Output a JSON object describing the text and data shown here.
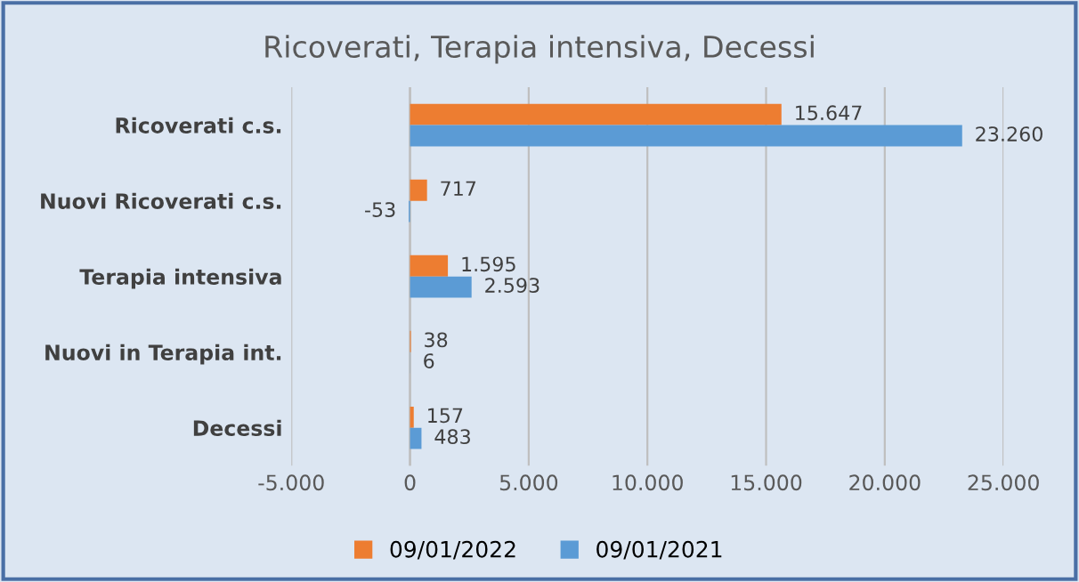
{
  "chart_data": {
    "type": "bar",
    "orientation": "horizontal",
    "title": "Ricoverati, Terapia intensiva, Decessi",
    "categories": [
      "Ricoverati c.s.",
      "Nuovi Ricoverati c.s.",
      "Terapia intensiva",
      "Nuovi in Terapia int.",
      "Decessi"
    ],
    "series": [
      {
        "name": "09/01/2022",
        "color": "#ed7d31",
        "values": [
          15647,
          717,
          1595,
          38,
          157
        ],
        "value_labels": [
          "15.647",
          "717",
          "1.595",
          "38",
          "157"
        ]
      },
      {
        "name": "09/01/2021",
        "color": "#5b9bd5",
        "values": [
          23260,
          -53,
          2593,
          6,
          483
        ],
        "value_labels": [
          "23.260",
          "-53",
          "2.593",
          "6",
          "483"
        ]
      }
    ],
    "xlim": [
      -5000,
      25000
    ],
    "xticks": [
      {
        "value": -5000,
        "label": "-5.000"
      },
      {
        "value": 0,
        "label": "0"
      },
      {
        "value": 5000,
        "label": "5.000"
      },
      {
        "value": 10000,
        "label": "10.000"
      },
      {
        "value": 15000,
        "label": "15.000"
      },
      {
        "value": 20000,
        "label": "20.000"
      },
      {
        "value": 25000,
        "label": "25.000"
      }
    ],
    "grid": "x",
    "legend": "bottom"
  }
}
